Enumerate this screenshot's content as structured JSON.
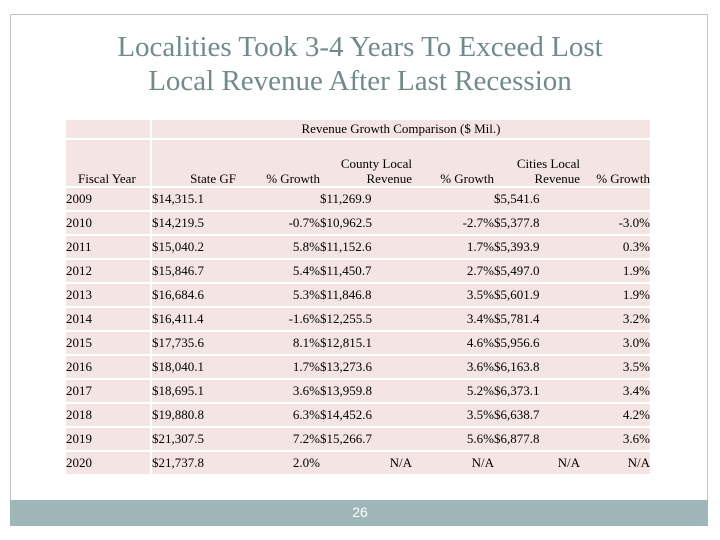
{
  "slide": {
    "title_line1": "Localities Took 3-4 Years To Exceed Lost",
    "title_line2": "Local Revenue After Last Recession",
    "page_number": "26"
  },
  "table": {
    "caption": "Revenue Growth Comparison ($ Mil.)",
    "headers": {
      "fiscal_year": "Fiscal Year",
      "state_gf": "State GF",
      "state_growth": "% Growth",
      "county_line1": "County Local",
      "county_line2": "Revenue",
      "county_growth": "% Growth",
      "cities_line1": "Cities Local",
      "cities_line2": "Revenue",
      "cities_growth": "% Growth"
    },
    "rows": [
      {
        "year": "2009",
        "state": "$14,315.1",
        "state_g": "",
        "county": "$11,269.9",
        "county_g": "",
        "cities": "$5,541.6",
        "cities_g": ""
      },
      {
        "year": "2010",
        "state": "$14,219.5",
        "state_g": "-0.7%",
        "county": "$10,962.5",
        "county_g": "-2.7%",
        "cities": "$5,377.8",
        "cities_g": "-3.0%"
      },
      {
        "year": "2011",
        "state": "$15,040.2",
        "state_g": "5.8%",
        "county": "$11,152.6",
        "county_g": "1.7%",
        "cities": "$5,393.9",
        "cities_g": "0.3%"
      },
      {
        "year": "2012",
        "state": "$15,846.7",
        "state_g": "5.4%",
        "county": "$11,450.7",
        "county_g": "2.7%",
        "cities": "$5,497.0",
        "cities_g": "1.9%"
      },
      {
        "year": "2013",
        "state": "$16,684.6",
        "state_g": "5.3%",
        "county": "$11,846.8",
        "county_g": "3.5%",
        "cities": "$5,601.9",
        "cities_g": "1.9%"
      },
      {
        "year": "2014",
        "state": "$16,411.4",
        "state_g": "-1.6%",
        "county": "$12,255.5",
        "county_g": "3.4%",
        "cities": "$5,781.4",
        "cities_g": "3.2%"
      },
      {
        "year": "2015",
        "state": "$17,735.6",
        "state_g": "8.1%",
        "county": "$12,815.1",
        "county_g": "4.6%",
        "cities": "$5,956.6",
        "cities_g": "3.0%"
      },
      {
        "year": "2016",
        "state": "$18,040.1",
        "state_g": "1.7%",
        "county": "$13,273.6",
        "county_g": "3.6%",
        "cities": "$6,163.8",
        "cities_g": "3.5%"
      },
      {
        "year": "2017",
        "state": "$18,695.1",
        "state_g": "3.6%",
        "county": "$13,959.8",
        "county_g": "5.2%",
        "cities": "$6,373.1",
        "cities_g": "3.4%"
      },
      {
        "year": "2018",
        "state": "$19,880.8",
        "state_g": "6.3%",
        "county": "$14,452.6",
        "county_g": "3.5%",
        "cities": "$6,638.7",
        "cities_g": "4.2%"
      },
      {
        "year": "2019",
        "state": "$21,307.5",
        "state_g": "7.2%",
        "county": "$15,266.7",
        "county_g": "5.6%",
        "cities": "$6,877.8",
        "cities_g": "3.6%"
      },
      {
        "year": "2020",
        "state": "$21,737.8",
        "state_g": "2.0%",
        "county": "N/A",
        "county_g": "N/A",
        "cities": "N/A",
        "cities_g": "N/A"
      }
    ]
  },
  "colors": {
    "title": "#6f8c8a",
    "cell_bg": "#f4e4e4",
    "footer_bar": "#9fb6b8",
    "frame_border": "#b9c6c5"
  }
}
